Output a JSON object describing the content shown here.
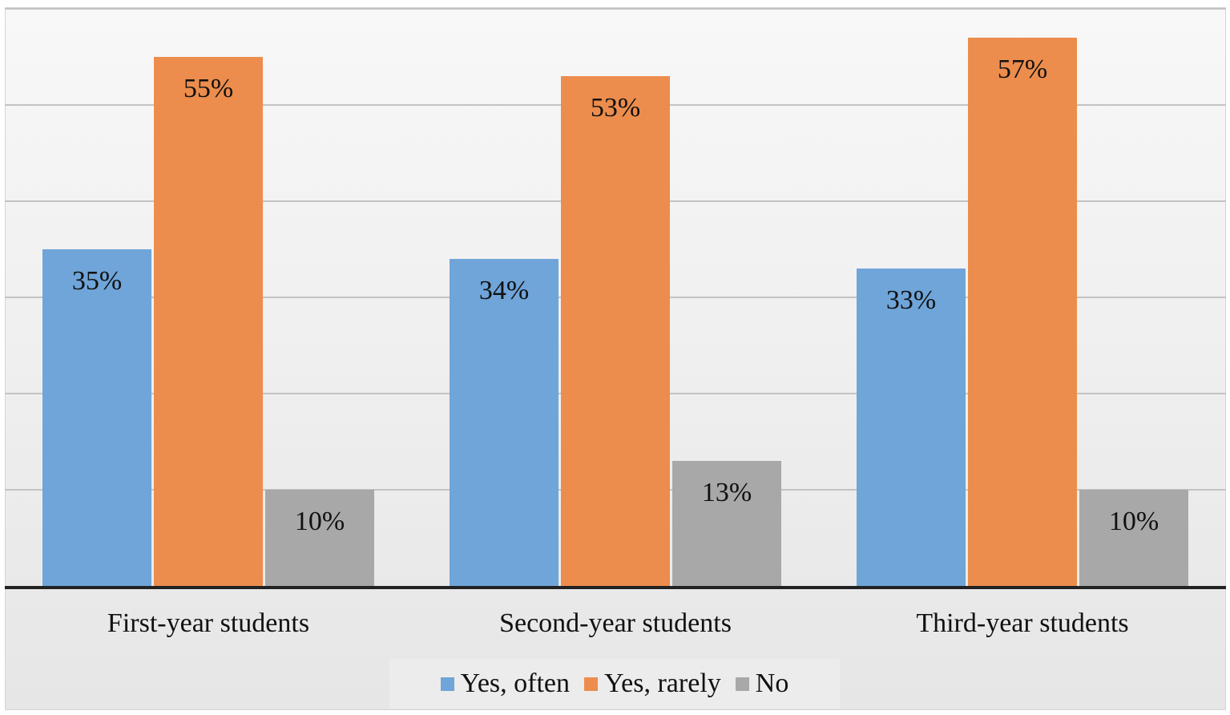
{
  "colors": {
    "yes_often": "#6fa5d9",
    "yes_rarely": "#ec8d4d",
    "no": "#a8a8a8",
    "gridline": "#c3c3c3",
    "axis": "#222222"
  },
  "chart_data": {
    "type": "bar",
    "title": "",
    "xlabel": "",
    "ylabel": "",
    "ylim": [
      0,
      60
    ],
    "grid": true,
    "legend_position": "bottom",
    "categories": [
      "First-year students",
      "Second-year students",
      "Third-year students"
    ],
    "series": [
      {
        "name": "Yes, often",
        "values": [
          35,
          34,
          33
        ],
        "labels": [
          "35%",
          "34%",
          "33%"
        ]
      },
      {
        "name": "Yes, rarely",
        "values": [
          55,
          53,
          57
        ],
        "labels": [
          "55%",
          "53%",
          "57%"
        ]
      },
      {
        "name": "No",
        "values": [
          10,
          13,
          10
        ],
        "labels": [
          "10%",
          "13%",
          "10%"
        ]
      }
    ]
  }
}
